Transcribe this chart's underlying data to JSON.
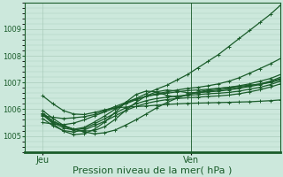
{
  "background_color": "#cce8dc",
  "plot_bg_color": "#cce8dc",
  "grid_color": "#aaccbb",
  "line_color": "#1a5c2a",
  "axis_color": "#1a5c2a",
  "xlabel": "Pression niveau de la mer( hPa )",
  "xlabel_fontsize": 8,
  "yticks": [
    1005,
    1006,
    1007,
    1008,
    1009
  ],
  "ylim": [
    1004.4,
    1010.0
  ],
  "xtick_labels": [
    "Jeu",
    "Ven"
  ],
  "xtick_positions": [
    0.07,
    0.65
  ],
  "xlim": [
    0.0,
    1.0
  ],
  "vline_x": 0.65,
  "series": [
    [
      1005.75,
      1005.7,
      1005.65,
      1005.68,
      1005.72,
      1005.8,
      1005.95,
      1006.1,
      1006.25,
      1006.4,
      1006.58,
      1006.75,
      1006.9,
      1007.1,
      1007.3,
      1007.55,
      1007.8,
      1008.05,
      1008.35,
      1008.65,
      1008.95,
      1009.25,
      1009.55,
      1009.9
    ],
    [
      1005.5,
      1005.45,
      1005.42,
      1005.48,
      1005.6,
      1005.75,
      1005.9,
      1006.05,
      1006.2,
      1006.35,
      1006.48,
      1006.58,
      1006.65,
      1006.72,
      1006.78,
      1006.82,
      1006.88,
      1006.95,
      1007.05,
      1007.18,
      1007.35,
      1007.52,
      1007.7,
      1007.9
    ],
    [
      1005.85,
      1005.55,
      1005.35,
      1005.25,
      1005.32,
      1005.52,
      1005.75,
      1006.0,
      1006.22,
      1006.38,
      1006.48,
      1006.55,
      1006.6,
      1006.65,
      1006.7,
      1006.72,
      1006.75,
      1006.78,
      1006.82,
      1006.88,
      1006.95,
      1007.05,
      1007.15,
      1007.3
    ],
    [
      1005.78,
      1005.5,
      1005.3,
      1005.22,
      1005.28,
      1005.45,
      1005.65,
      1005.85,
      1006.05,
      1006.2,
      1006.32,
      1006.4,
      1006.45,
      1006.5,
      1006.52,
      1006.55,
      1006.58,
      1006.6,
      1006.63,
      1006.68,
      1006.75,
      1006.82,
      1006.92,
      1007.05
    ],
    [
      1005.65,
      1005.38,
      1005.2,
      1005.15,
      1005.22,
      1005.38,
      1005.55,
      1005.75,
      1005.95,
      1006.1,
      1006.22,
      1006.3,
      1006.36,
      1006.4,
      1006.43,
      1006.45,
      1006.48,
      1006.5,
      1006.53,
      1006.58,
      1006.65,
      1006.73,
      1006.83,
      1006.95
    ],
    [
      1005.95,
      1005.65,
      1005.4,
      1005.25,
      1005.18,
      1005.2,
      1005.35,
      1005.62,
      1005.95,
      1006.25,
      1006.5,
      1006.65,
      1006.72,
      1006.68,
      1006.62,
      1006.62,
      1006.65,
      1006.68,
      1006.72,
      1006.78,
      1006.85,
      1006.92,
      1007.02,
      1007.15
    ],
    [
      1005.85,
      1005.55,
      1005.38,
      1005.25,
      1005.15,
      1005.08,
      1005.12,
      1005.22,
      1005.4,
      1005.6,
      1005.82,
      1006.05,
      1006.25,
      1006.42,
      1006.55,
      1006.62,
      1006.68,
      1006.72,
      1006.77,
      1006.82,
      1006.88,
      1006.95,
      1007.05,
      1007.2
    ],
    [
      1006.5,
      1006.2,
      1005.95,
      1005.82,
      1005.8,
      1005.88,
      1005.98,
      1006.05,
      1006.08,
      1006.1,
      1006.12,
      1006.15,
      1006.18,
      1006.2,
      1006.22,
      1006.23,
      1006.24,
      1006.25,
      1006.26,
      1006.27,
      1006.28,
      1006.3,
      1006.32,
      1006.35
    ]
  ],
  "series_hump": [
    1005.8,
    1005.45,
    1005.18,
    1005.05,
    1005.08,
    1005.25,
    1005.52,
    1005.88,
    1006.25,
    1006.55,
    1006.68,
    1006.65,
    1006.52,
    1006.45,
    1006.55,
    1006.65,
    1006.72,
    1006.78,
    1006.82,
    1006.86,
    1006.9,
    1006.94,
    1007.0,
    1007.1
  ],
  "marker": "+",
  "marker_size": 3.5,
  "line_width": 0.9
}
